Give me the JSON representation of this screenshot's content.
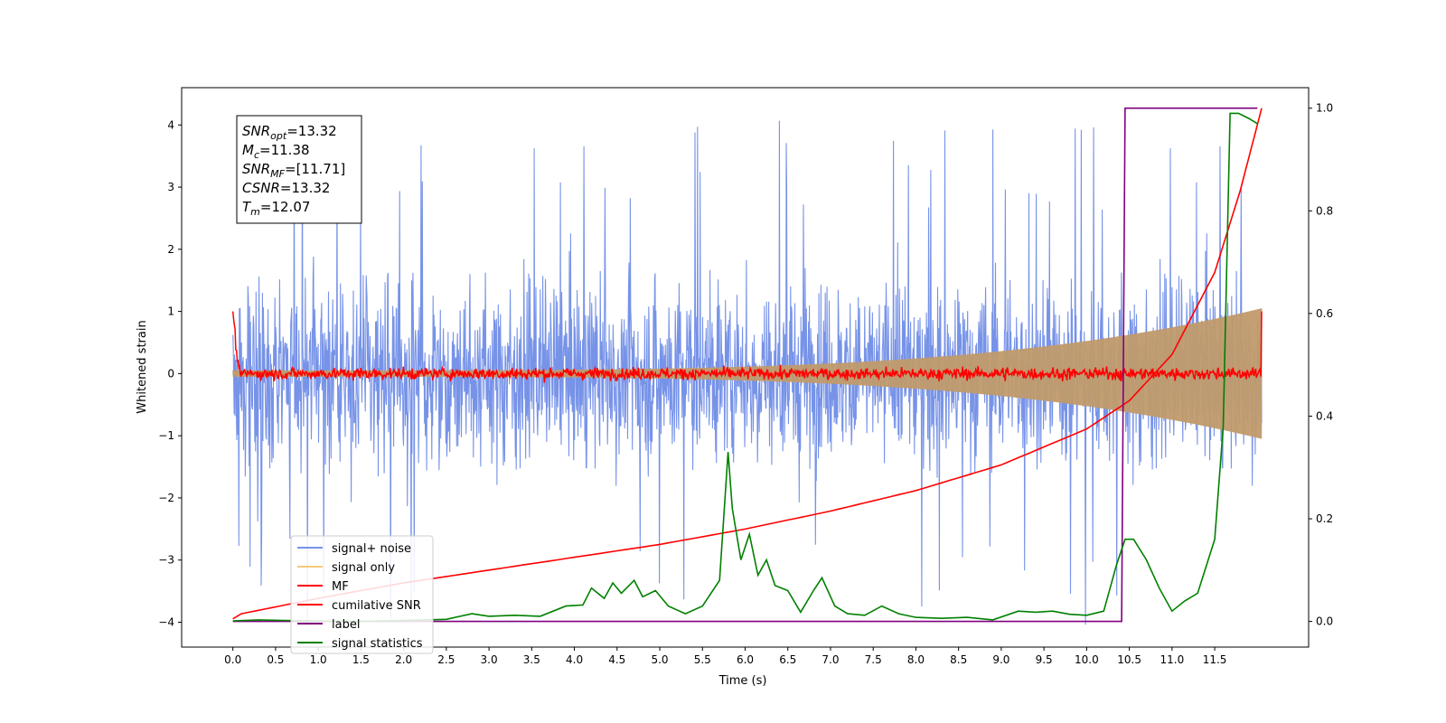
{
  "chart_data": {
    "type": "line",
    "xlabel": "Time (s)",
    "ylabel_left": "Whitened strain",
    "ylabel_right": "",
    "xlim": [
      -0.6,
      12.6
    ],
    "ylim_left": [
      -4.4,
      4.6
    ],
    "ylim_right": [
      -0.05,
      1.04
    ],
    "x_ticks": [
      "0.0",
      "0.5",
      "1.0",
      "1.5",
      "2.0",
      "2.5",
      "3.0",
      "3.5",
      "4.0",
      "4.5",
      "5.0",
      "5.5",
      "6.0",
      "6.5",
      "7.0",
      "7.5",
      "8.0",
      "8.5",
      "9.0",
      "9.5",
      "10.0",
      "10.5",
      "11.0",
      "11.5"
    ],
    "y_ticks_left": [
      "−4",
      "−3",
      "−2",
      "−1",
      "0",
      "1",
      "2",
      "3",
      "4"
    ],
    "y_ticks_right": [
      "0.0",
      "0.2",
      "0.4",
      "0.6",
      "0.8",
      "1.0"
    ],
    "grid": false,
    "legend_position": "lower-left",
    "stats_box": {
      "lines": [
        {
          "sym": "SNR",
          "sub": "opt",
          "val": "=13.32"
        },
        {
          "sym": "M",
          "sub": "c",
          "val": "=11.38"
        },
        {
          "sym": "SNR",
          "sub": "MF",
          "val": "=[11.71]"
        },
        {
          "sym": "CSNR",
          "sub": "",
          "val": "=13.32"
        },
        {
          "sym": "T",
          "sub": "m",
          "val": "=12.07"
        }
      ]
    },
    "series": [
      {
        "name": "signal+ noise",
        "color": "#7793e8",
        "axis": "left",
        "description_kind": "noise_band",
        "amplitude_typical": 1.6,
        "amplitude_max": 4.2,
        "x_range": [
          0.0,
          12.05
        ]
      },
      {
        "name": "signal only",
        "color": "#f5c97a",
        "axis": "left",
        "description_kind": "chirp",
        "amplitude_start": 0.05,
        "amplitude_end": 1.05,
        "x_range": [
          0.0,
          12.05
        ]
      },
      {
        "name": "MF",
        "color": "#ff0000",
        "axis": "left",
        "description_kind": "mf_noise",
        "start": 1.0,
        "amplitude": 0.12,
        "end": 1.0,
        "x_range": [
          0.0,
          12.05
        ]
      },
      {
        "name": "cumilative SNR",
        "color": "#ff0000",
        "axis": "right",
        "x": [
          0.0,
          0.1,
          1.0,
          2.0,
          3.0,
          4.0,
          5.0,
          6.0,
          7.0,
          8.0,
          9.0,
          10.0,
          10.5,
          11.0,
          11.5,
          11.8,
          12.05
        ],
        "y": [
          0.005,
          0.015,
          0.045,
          0.075,
          0.1,
          0.125,
          0.15,
          0.18,
          0.215,
          0.255,
          0.305,
          0.375,
          0.43,
          0.52,
          0.68,
          0.84,
          1.0
        ]
      },
      {
        "name": "label",
        "color": "#800080",
        "axis": "right",
        "x": [
          0.0,
          10.41,
          10.45,
          12.0
        ],
        "y": [
          0.0,
          0.0,
          1.0,
          1.0
        ]
      },
      {
        "name": "signal statistics",
        "color": "#008000",
        "axis": "right",
        "x": [
          0.0,
          0.3,
          0.6,
          1.0,
          1.5,
          2.0,
          2.5,
          2.8,
          3.0,
          3.3,
          3.6,
          3.9,
          4.1,
          4.2,
          4.35,
          4.45,
          4.55,
          4.7,
          4.8,
          4.95,
          5.1,
          5.3,
          5.5,
          5.7,
          5.8,
          5.85,
          5.95,
          6.05,
          6.15,
          6.25,
          6.35,
          6.5,
          6.65,
          6.8,
          6.9,
          7.05,
          7.2,
          7.4,
          7.6,
          7.8,
          8.0,
          8.3,
          8.6,
          8.9,
          9.2,
          9.4,
          9.6,
          9.8,
          10.0,
          10.2,
          10.35,
          10.45,
          10.55,
          10.7,
          10.85,
          11.0,
          11.15,
          11.3,
          11.5,
          11.6,
          11.68,
          11.78,
          11.9,
          12.0
        ],
        "y": [
          0.001,
          0.003,
          0.002,
          0.001,
          0.0,
          0.002,
          0.004,
          0.015,
          0.01,
          0.012,
          0.01,
          0.03,
          0.032,
          0.065,
          0.045,
          0.075,
          0.055,
          0.08,
          0.048,
          0.06,
          0.03,
          0.015,
          0.03,
          0.08,
          0.33,
          0.22,
          0.12,
          0.17,
          0.09,
          0.12,
          0.07,
          0.06,
          0.018,
          0.06,
          0.085,
          0.03,
          0.015,
          0.012,
          0.03,
          0.015,
          0.008,
          0.006,
          0.008,
          0.003,
          0.02,
          0.018,
          0.02,
          0.014,
          0.012,
          0.02,
          0.11,
          0.16,
          0.16,
          0.12,
          0.065,
          0.02,
          0.04,
          0.055,
          0.16,
          0.38,
          0.99,
          0.99,
          0.98,
          0.97
        ]
      }
    ]
  }
}
